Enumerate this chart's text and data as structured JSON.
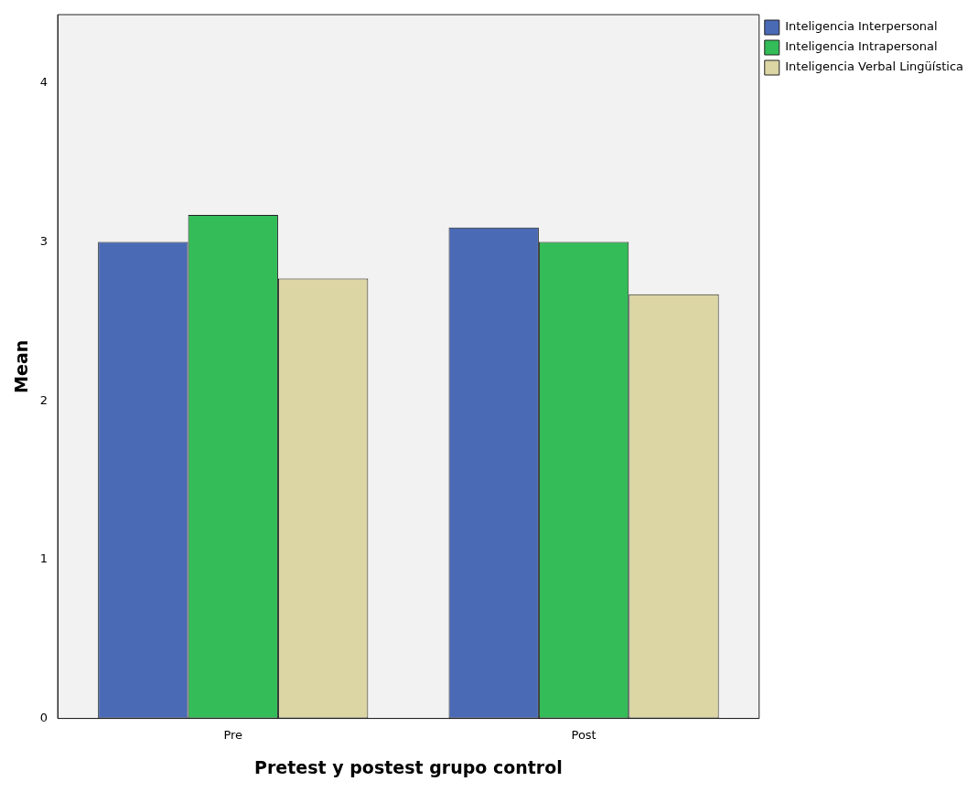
{
  "chart_data": {
    "type": "bar",
    "xlabel": "Pretest y postest grupo control",
    "ylabel": "Mean",
    "categories": [
      "Pre",
      "Post"
    ],
    "series": [
      {
        "name": "Inteligencia Interpersonal",
        "color": "#4a6ab6",
        "values": [
          3.0,
          3.09
        ]
      },
      {
        "name": "Inteligencia Intrapersonal",
        "color": "#33bc57",
        "values": [
          3.17,
          3.0
        ]
      },
      {
        "name": "Inteligencia Verbal Lingüística",
        "color": "#dcd5a4",
        "values": [
          2.77,
          2.67
        ]
      }
    ],
    "ylim": [
      0,
      4.43
    ],
    "yticks": [
      0,
      1,
      2,
      3,
      4
    ],
    "grid": false,
    "legend": "right"
  }
}
